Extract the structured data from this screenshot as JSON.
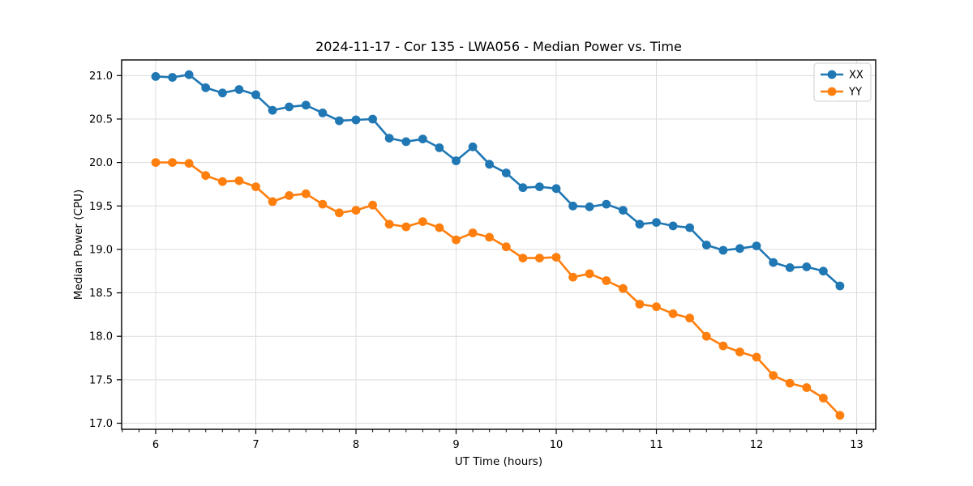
{
  "chart_data": {
    "type": "line",
    "title": "2024-11-17 - Cor 135 - LWA056 - Median Power vs. Time",
    "xlabel": "UT Time (hours)",
    "ylabel": "Median Power (CPU)",
    "x": [
      6.0,
      6.167,
      6.333,
      6.5,
      6.667,
      6.833,
      7.0,
      7.167,
      7.333,
      7.5,
      7.667,
      7.833,
      8.0,
      8.167,
      8.333,
      8.5,
      8.667,
      8.833,
      9.0,
      9.167,
      9.333,
      9.5,
      9.667,
      9.833,
      10.0,
      10.167,
      10.333,
      10.5,
      10.667,
      10.833,
      11.0,
      11.167,
      11.333,
      11.5,
      11.667,
      11.833,
      12.0,
      12.167,
      12.333,
      12.5,
      12.667,
      12.833
    ],
    "series": [
      {
        "name": "XX",
        "color": "#1f77b4",
        "values": [
          20.99,
          20.98,
          21.01,
          20.86,
          20.8,
          20.84,
          20.78,
          20.6,
          20.64,
          20.66,
          20.57,
          20.48,
          20.49,
          20.5,
          20.28,
          20.24,
          20.27,
          20.17,
          20.02,
          20.18,
          19.98,
          19.88,
          19.71,
          19.72,
          19.7,
          19.5,
          19.49,
          19.52,
          19.45,
          19.29,
          19.31,
          19.27,
          19.25,
          19.05,
          18.99,
          19.01,
          19.04,
          18.85,
          18.79,
          18.8,
          18.75,
          18.58
        ]
      },
      {
        "name": "YY",
        "color": "#ff7f0e",
        "values": [
          20.0,
          20.0,
          19.99,
          19.85,
          19.78,
          19.79,
          19.72,
          19.55,
          19.62,
          19.64,
          19.52,
          19.42,
          19.45,
          19.51,
          19.29,
          19.26,
          19.32,
          19.25,
          19.11,
          19.19,
          19.14,
          19.03,
          18.9,
          18.9,
          18.91,
          18.68,
          18.72,
          18.64,
          18.55,
          18.37,
          18.34,
          18.26,
          18.21,
          18.0,
          17.89,
          17.82,
          17.76,
          17.55,
          17.46,
          17.41,
          17.29,
          17.09
        ]
      }
    ],
    "xlim": [
      5.66,
      13.19
    ],
    "ylim": [
      16.93,
      21.18
    ],
    "xticks": [
      6,
      7,
      8,
      9,
      10,
      11,
      12,
      13
    ],
    "yticks": [
      17.0,
      17.5,
      18.0,
      18.5,
      19.0,
      19.5,
      20.0,
      20.5,
      21.0
    ],
    "x_minor_step": 0.16667,
    "grid": true,
    "grid_color": "#dcdcdc",
    "background": "#ffffff",
    "marker": "circle",
    "legend": {
      "position": "upper right",
      "entries": [
        "XX",
        "YY"
      ]
    }
  }
}
